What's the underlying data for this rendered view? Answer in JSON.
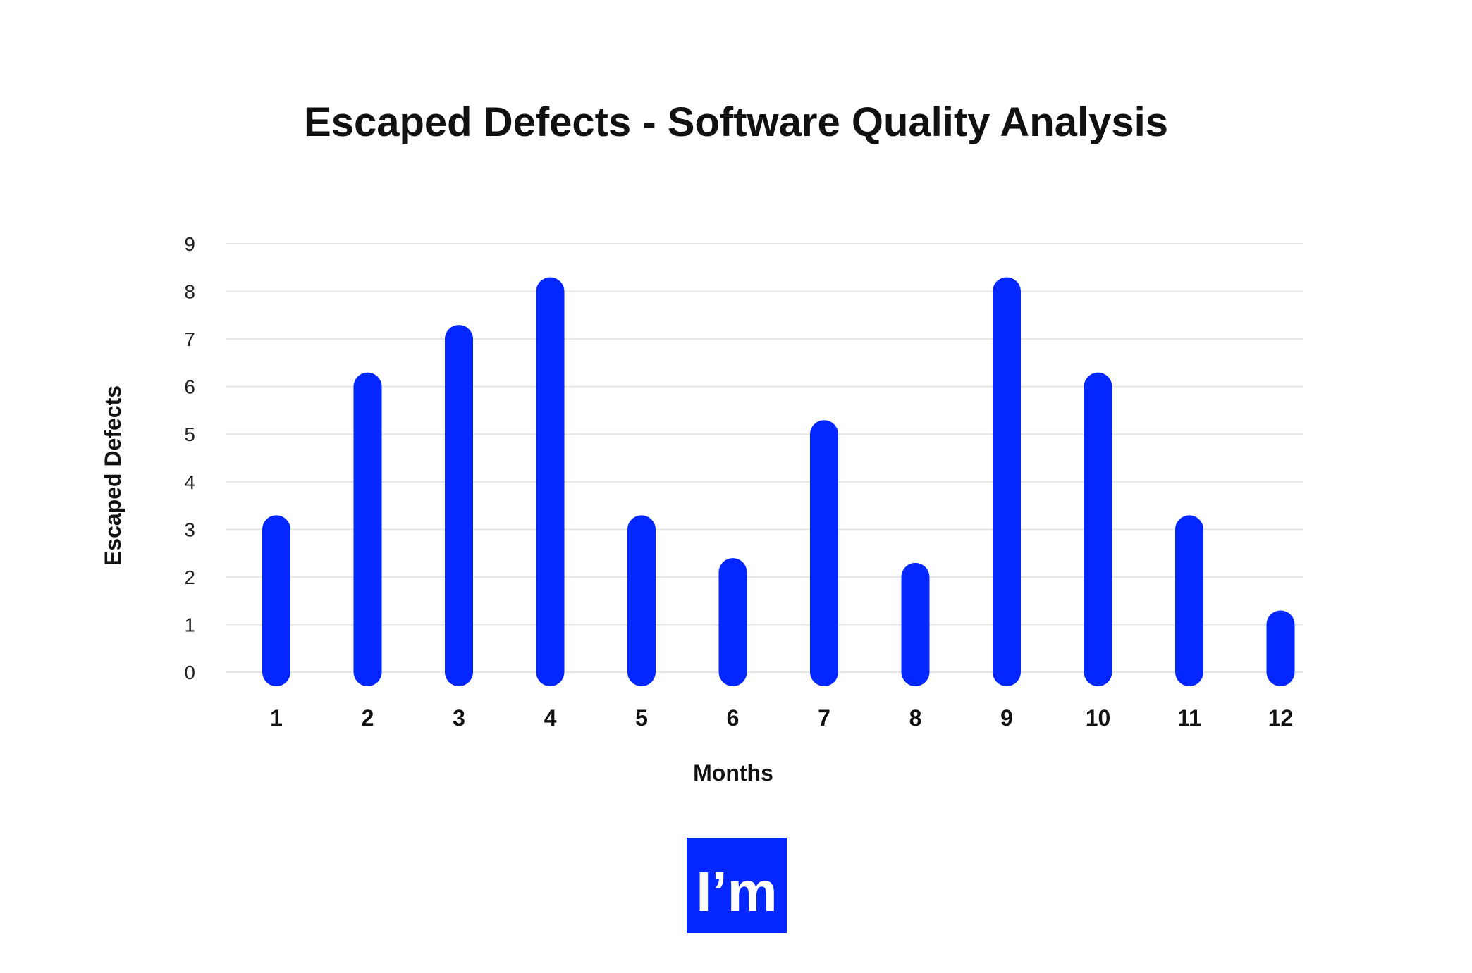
{
  "chart_data": {
    "type": "bar",
    "title": "Escaped Defects - Software Quality Analysis",
    "xlabel": "Months",
    "ylabel": "Escaped Defects",
    "categories": [
      "1",
      "2",
      "3",
      "4",
      "5",
      "6",
      "7",
      "8",
      "9",
      "10",
      "11",
      "12"
    ],
    "values": [
      3,
      6,
      7,
      8,
      3,
      2.1,
      5,
      2,
      8,
      6,
      3,
      1
    ],
    "ylim": [
      0,
      9
    ],
    "yticks": [
      "0",
      "1",
      "2",
      "3",
      "4",
      "5",
      "6",
      "7",
      "8",
      "9"
    ],
    "grid": true,
    "legend": "none",
    "bar_color": "#0527FF",
    "grid_color": "#E6E6E6"
  },
  "logo": {
    "text": "I’m",
    "color": "#0527FF"
  }
}
